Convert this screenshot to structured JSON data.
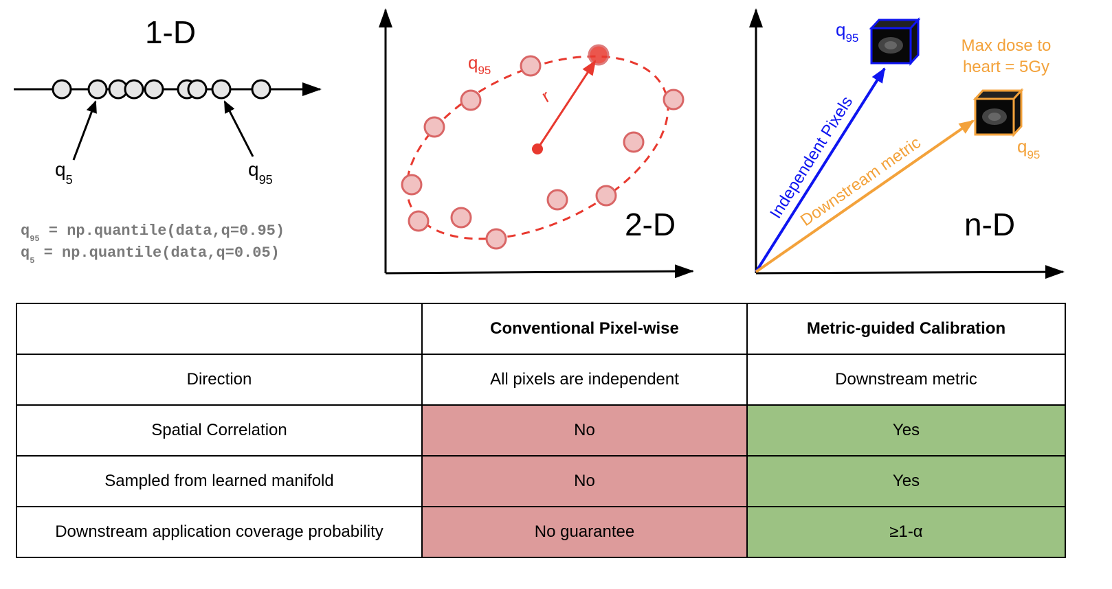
{
  "panel_1d": {
    "title": "1-D",
    "q5_label": "q",
    "q5_sub": "5",
    "q95_label": "q",
    "q95_sub": "95",
    "code_line1_var": "q",
    "code_line1_sub": "95",
    "code_line1_expr": " = np.quantile(data,q=0.95)",
    "code_line2_var": "q",
    "code_line2_sub": "5",
    "code_line2_expr": " = np.quantile(data,q=0.05)"
  },
  "panel_2d": {
    "title": "2-D",
    "q95_label": "q",
    "q95_sub": "95",
    "radius_label": "r",
    "color": "#e8392f",
    "point_fill": "#f1c1c1",
    "point_stroke": "#d96666"
  },
  "panel_nd": {
    "title": "n-D",
    "top_q_label": "q",
    "top_q_sub": "95",
    "right_q_label": "q",
    "right_q_sub": "95",
    "independent_arrow_label": "Independent Pixels",
    "downstream_arrow_label": "Downstream metric",
    "max_dose_line1": "Max dose to",
    "max_dose_line2": "heart = 5Gy",
    "blue": "#0e15f0",
    "orange": "#f3a23b"
  },
  "table": {
    "headers": [
      "",
      "Conventional Pixel-wise",
      "Metric-guided Calibration"
    ],
    "rows": [
      {
        "label": "Direction",
        "conventional": "All pixels are independent",
        "metric": "Downstream metric"
      },
      {
        "label": "Spatial Correlation",
        "conventional": "No",
        "metric": "Yes"
      },
      {
        "label": "Sampled from learned manifold",
        "conventional": "No",
        "metric": "Yes"
      },
      {
        "label": "Downstream application coverage probability",
        "conventional": "No guarantee",
        "metric": "≥1-α"
      }
    ],
    "bad_color": "#dd9b9b",
    "good_color": "#9cc283"
  }
}
